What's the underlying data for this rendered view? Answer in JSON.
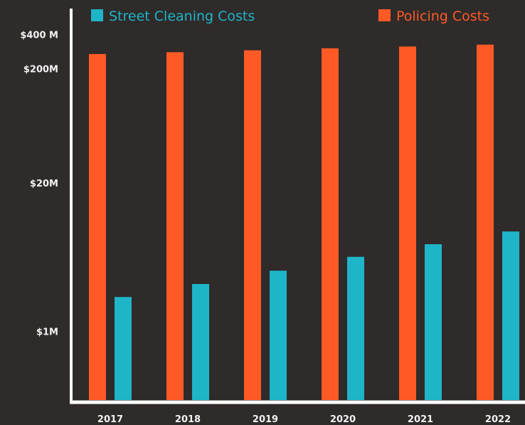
{
  "chart_data": {
    "type": "bar",
    "categories": [
      "2017",
      "2018",
      "2019",
      "2020",
      "2021",
      "2022"
    ],
    "series": [
      {
        "name": "Policing Costs",
        "values": [
          269,
          279,
          290,
          302,
          313,
          325
        ],
        "color": "#ff5a26"
      },
      {
        "name": "Street Cleaning Costs",
        "values": [
          2.0,
          2.6,
          3.4,
          4.5,
          5.8,
          7.5
        ],
        "color": "#1fb5c9"
      }
    ],
    "legend_order": [
      "Street Cleaning Costs",
      "Policing Costs"
    ],
    "legend_position": "top",
    "y_scale": "log",
    "y_ticks": [
      {
        "value": 1,
        "label": "$1M"
      },
      {
        "value": 20,
        "label": "$20M"
      },
      {
        "value": 200,
        "label": "$200M"
      },
      {
        "value": 400,
        "label": "$400 M"
      }
    ],
    "ylim": [
      0.25,
      800
    ],
    "title": "",
    "xlabel": "",
    "ylabel": "",
    "grid": false,
    "background_color": "#2e2b2a",
    "axis_color": "#ffffff"
  }
}
